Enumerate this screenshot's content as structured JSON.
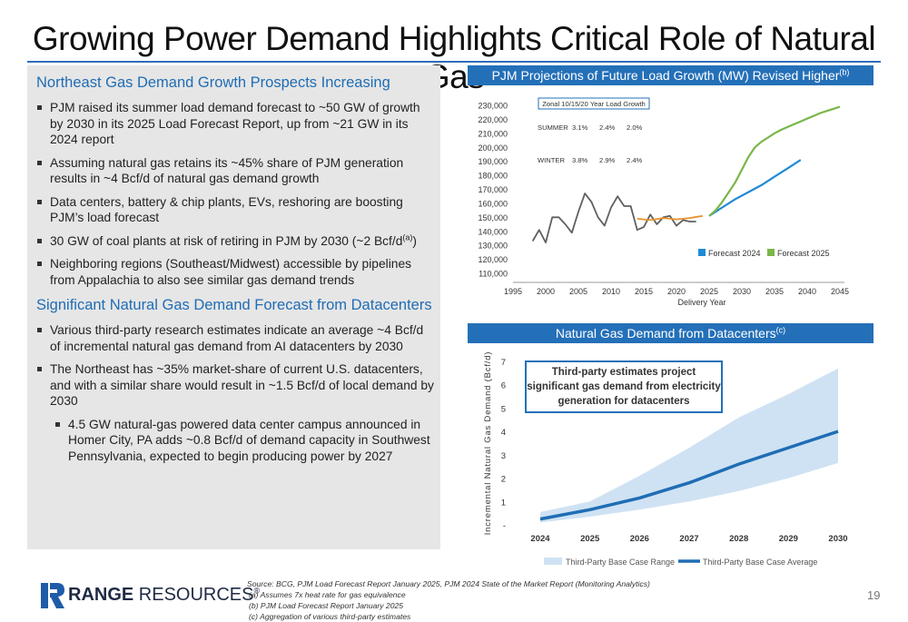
{
  "title": "Growing Power Demand Highlights Critical Role of Natural Gas",
  "left": {
    "section1_title": "Northeast Gas Demand Growth Prospects Increasing",
    "section1_bullets": [
      "PJM raised its summer load demand forecast to ~50 GW of growth by 2030 in its 2025 Load Forecast Report, up from ~21 GW in its 2024 report",
      "Assuming natural gas retains its ~45% share of PJM generation results in ~4 Bcf/d of natural gas demand growth",
      "Data centers, battery & chip plants, EVs, reshoring are boosting PJM’s load forecast",
      "30 GW of coal plants at risk of retiring in PJM by 2030 (~2 Bcf/d",
      "Neighboring regions (Southeast/Midwest) accessible by pipelines from Appalachia to also see similar gas demand trends"
    ],
    "coal_sup": "(a)",
    "coal_close": ")",
    "section2_title": "Significant Natural Gas Demand Forecast from Datacenters",
    "section2_bullets": [
      "Various third-party research estimates indicate an average ~4 Bcf/d of incremental natural gas demand from AI datacenters by 2030",
      "The Northeast has ~35% market-share of current U.S. datacenters, and with a similar share would result in ~1.5 Bcf/d of local demand by 2030"
    ],
    "section2_sub": "4.5 GW natural-gas powered data center campus announced in Homer City, PA adds ~0.8 Bcf/d of demand capacity in Southwest Pennsylvania, expected to begin producing power by 2027"
  },
  "chart1_header": "PJM Projections of Future Load Growth (MW) Revised Higher",
  "chart1_header_sup": "(b)",
  "chart2_header": "Natural Gas Demand from Datacenters",
  "chart2_header_sup": "(c)",
  "chart_data": [
    {
      "type": "line",
      "xlabel": "Delivery Year",
      "ylabel": "",
      "xlim": [
        1995,
        2045
      ],
      "ylim": [
        110000,
        230000
      ],
      "x_ticks": [
        1995,
        2000,
        2005,
        2010,
        2015,
        2020,
        2025,
        2030,
        2035,
        2040,
        2045
      ],
      "y_ticks": [
        "110,000",
        "120,000",
        "130,000",
        "140,000",
        "150,000",
        "160,000",
        "170,000",
        "180,000",
        "190,000",
        "200,000",
        "210,000",
        "220,000",
        "230,000"
      ],
      "y_tick_values": [
        110000,
        120000,
        130000,
        140000,
        150000,
        160000,
        170000,
        180000,
        190000,
        200000,
        210000,
        220000,
        230000
      ],
      "series": [
        {
          "name": "",
          "color": "#606060",
          "x": [
            1998,
            1999,
            2000,
            2001,
            2002,
            2003,
            2004,
            2005,
            2006,
            2007,
            2008,
            2009,
            2010,
            2011,
            2012,
            2013,
            2014,
            2015,
            2016,
            2017,
            2018,
            2019,
            2020,
            2021,
            2022,
            2023
          ],
          "y": [
            133000,
            141000,
            132000,
            150000,
            150000,
            145000,
            139000,
            154000,
            167000,
            161000,
            150000,
            144000,
            157000,
            165000,
            158000,
            158000,
            141000,
            143000,
            152000,
            145000,
            150000,
            151000,
            144000,
            148000,
            147000,
            147000
          ]
        },
        {
          "name": "",
          "color": "#e8922b",
          "x": [
            2014,
            2016,
            2018,
            2020,
            2022,
            2024
          ],
          "y": [
            149000,
            148000,
            149500,
            148500,
            149500,
            151000
          ]
        },
        {
          "name": "Forecast 2024",
          "color": "#1f8ad6",
          "x": [
            2025,
            2027,
            2029,
            2031,
            2033,
            2035,
            2037,
            2039
          ],
          "y": [
            151000,
            157000,
            163000,
            168000,
            173000,
            179000,
            185000,
            191000
          ]
        },
        {
          "name": "Forecast 2025",
          "color": "#7ab648",
          "x": [
            2025,
            2026,
            2027,
            2028,
            2029,
            2030,
            2031,
            2032,
            2033,
            2034,
            2035,
            2036,
            2037,
            2038,
            2039,
            2040,
            2041,
            2042,
            2043,
            2044,
            2045
          ],
          "y": [
            151000,
            155000,
            161000,
            168000,
            175000,
            184000,
            193000,
            200000,
            204000,
            207000,
            210000,
            212500,
            214500,
            216500,
            218500,
            220500,
            222500,
            224500,
            226000,
            227500,
            229000
          ]
        }
      ],
      "legend": [
        "Forecast 2024",
        "Forecast 2025"
      ],
      "legend_placement": "bottom-right",
      "inset": {
        "title": "Zonal 10/15/20 Year Load Growth",
        "rows": [
          {
            "label": "SUMMER",
            "values": [
              "3.1%",
              "2.4%",
              "2.0%"
            ]
          },
          {
            "label": "WINTER",
            "values": [
              "3.8%",
              "2.9%",
              "2.4%"
            ]
          }
        ]
      }
    },
    {
      "type": "area",
      "xlabel": "",
      "ylabel": "Incremental Natural Gas Demand (Bcf/d)",
      "categories": [
        "2024",
        "2025",
        "2026",
        "2027",
        "2028",
        "2029",
        "2030"
      ],
      "y_ticks": [
        "-",
        "1",
        "2",
        "3",
        "4",
        "5",
        "6",
        "7"
      ],
      "ylim": [
        0,
        7
      ],
      "series": [
        {
          "name": "Third-Party Base Case Range",
          "color": "#cfe2f3",
          "low": [
            0.1,
            0.35,
            0.65,
            1.0,
            1.45,
            2.0,
            2.65
          ],
          "high": [
            0.55,
            1.0,
            2.1,
            3.3,
            4.6,
            5.6,
            6.7
          ]
        },
        {
          "name": "Third-Party Base Case Average",
          "color": "#1f6db5",
          "values": [
            0.25,
            0.65,
            1.15,
            1.8,
            2.6,
            3.3,
            4.0
          ]
        }
      ],
      "legend": [
        "Third-Party Base Case Range",
        "Third-Party Base Case Average"
      ],
      "legend_placement": "bottom",
      "annotation": "Third-party estimates project significant gas demand from electricity generation for datacenters",
      "annotation_lines": [
        "Third-party estimates project",
        "significant gas demand from electricity",
        "generation for datacenters"
      ]
    }
  ],
  "footer": {
    "logo_bold": "RANGE",
    "logo_rest": " RESOURCES",
    "logo_mark": "®",
    "source": "Source: BCG, PJM Load Forecast Report January 2025, PJM 2024 State of the Market Report (Monitoring Analytics)",
    "footnotes": [
      "(a)    Assumes 7x heat rate for gas equivalence",
      "(b)    PJM Load Forecast Report January 2025",
      "(c)    Aggregation of various third-party estimates"
    ],
    "page_number": "19"
  }
}
